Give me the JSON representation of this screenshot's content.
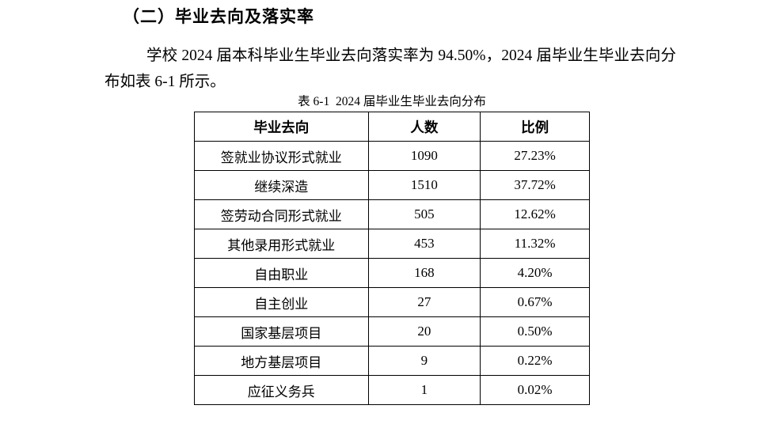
{
  "page": {
    "heading": "（二）毕业去向及落实率",
    "paragraph": "学校 2024 届本科毕业生毕业去向落实率为 94.50%，2024 届毕业生毕业去向分布如表 6-1 所示。"
  },
  "table": {
    "caption": "表 6-1  2024 届毕业生毕业去向分布",
    "columns": [
      "毕业去向",
      "人数",
      "比例"
    ],
    "rows": [
      [
        "签就业协议形式就业",
        "1090",
        "27.23%"
      ],
      [
        "继续深造",
        "1510",
        "37.72%"
      ],
      [
        "签劳动合同形式就业",
        "505",
        "12.62%"
      ],
      [
        "其他录用形式就业",
        "453",
        "11.32%"
      ],
      [
        "自由职业",
        "168",
        "4.20%"
      ],
      [
        "自主创业",
        "27",
        "0.67%"
      ],
      [
        "国家基层项目",
        "20",
        "0.50%"
      ],
      [
        "地方基层项目",
        "9",
        "0.22%"
      ],
      [
        "应征义务兵",
        "1",
        "0.02%"
      ]
    ]
  },
  "colors": {
    "text": "#000000",
    "background": "#ffffff",
    "table_border": "#000000"
  }
}
